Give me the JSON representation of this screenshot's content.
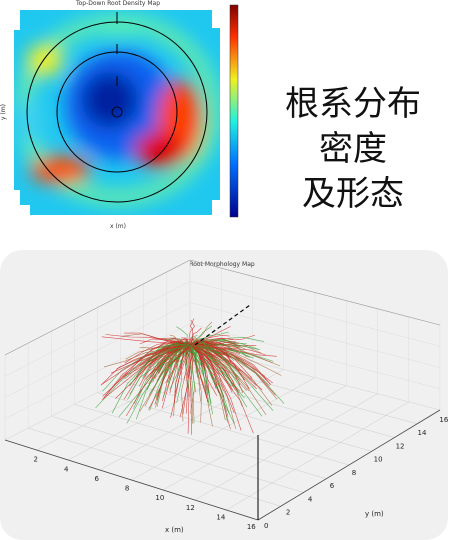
{
  "heatmap": {
    "title": "Top-Down Root Density Map",
    "x_label": "x (m)",
    "y_label": "y (m)"
  },
  "caption": [
    "根系分布",
    "密度",
    "及形态"
  ],
  "morphology": {
    "title": "Root Morphology Map",
    "x_label": "x (m)",
    "y_label": "y (m)",
    "x_ticks": [
      2,
      4,
      6,
      8,
      10,
      12,
      14,
      16
    ],
    "y_ticks": [
      0,
      2,
      4,
      6,
      8,
      10,
      12,
      14,
      16
    ]
  }
}
